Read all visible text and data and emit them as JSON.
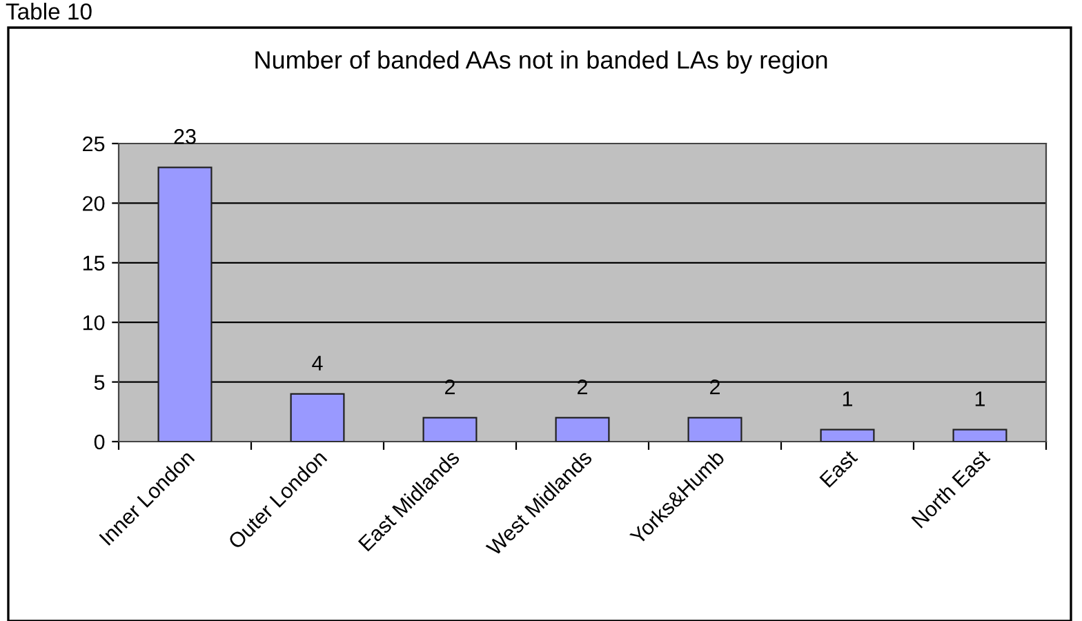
{
  "chart_data": {
    "type": "bar",
    "title": "Number of banded AAs not in banded LAs by region",
    "categories": [
      "Inner London",
      "Outer London",
      "East Midlands",
      "West Midlands",
      "Yorks&Humb",
      "East",
      "North East"
    ],
    "values": [
      23,
      4,
      2,
      2,
      2,
      1,
      1
    ],
    "color": "#9999ff",
    "ylim": [
      0,
      25
    ],
    "yticks": [
      0,
      5,
      10,
      15,
      20,
      25
    ],
    "grid": "y",
    "data_labels": true,
    "annotations": [
      "Table 10"
    ]
  }
}
